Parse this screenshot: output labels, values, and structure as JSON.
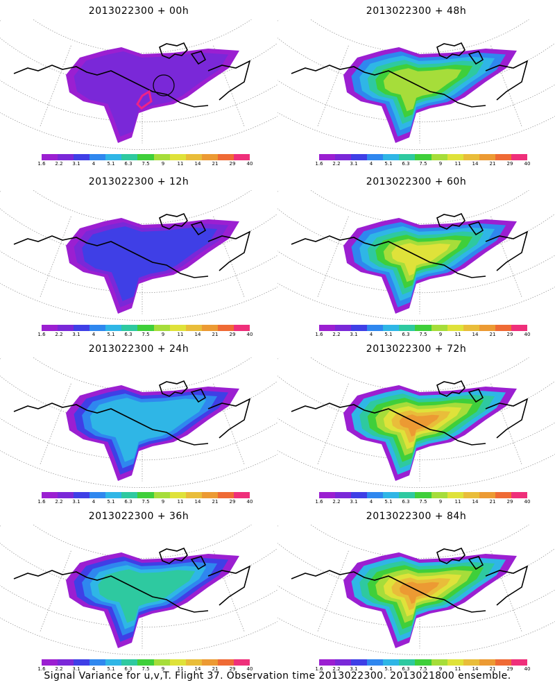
{
  "colorbar": {
    "labels": [
      "1.6",
      "2.2",
      "3.1",
      "4",
      "5.1",
      "6.3",
      "7.5",
      "9",
      "11",
      "14",
      "21",
      "29",
      "40"
    ],
    "colors": [
      "#9b1fd1",
      "#7a28d8",
      "#3f3fe6",
      "#2f87ef",
      "#2fb6e6",
      "#2ec9a0",
      "#3fcf3a",
      "#a6dd3a",
      "#dfe23a",
      "#e9bd3a",
      "#ec9a33",
      "#ef6a35",
      "#ef2f7a"
    ]
  },
  "panels": [
    {
      "title": "2013022300 + 00h",
      "level": 0
    },
    {
      "title": "2013022300 + 48h",
      "level": 4
    },
    {
      "title": "2013022300 + 12h",
      "level": 1
    },
    {
      "title": "2013022300 + 60h",
      "level": 5
    },
    {
      "title": "2013022300 + 24h",
      "level": 2
    },
    {
      "title": "2013022300 + 72h",
      "level": 6
    },
    {
      "title": "2013022300 + 36h",
      "level": 3
    },
    {
      "title": "2013022300 + 84h",
      "level": 7
    }
  ],
  "footer": "Signal Variance for u,v,T. Flight 37. Observation time 2013022300. 2013021800 ensemble."
}
